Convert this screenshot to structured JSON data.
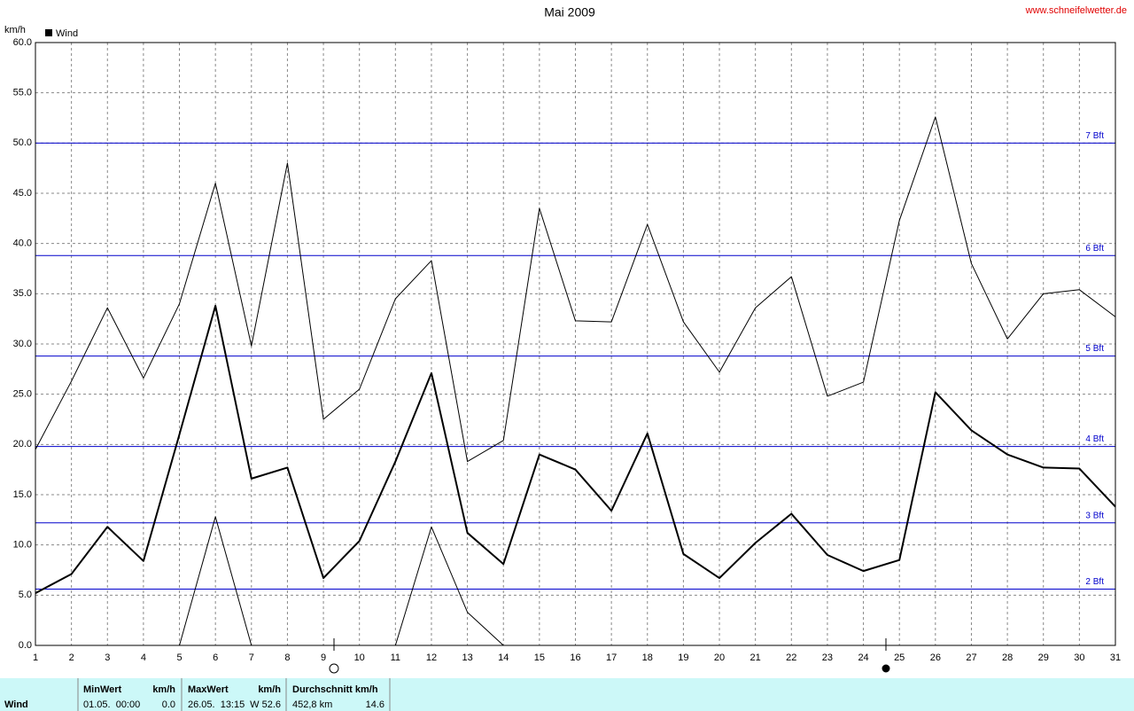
{
  "chart_data": {
    "type": "line",
    "title": "Mai 2009",
    "source": "www.schneifelwetter.de",
    "y_label": "km/h",
    "legend": "Wind",
    "x": [
      1,
      2,
      3,
      4,
      5,
      6,
      7,
      8,
      9,
      10,
      11,
      12,
      13,
      14,
      15,
      16,
      17,
      18,
      19,
      20,
      21,
      22,
      23,
      24,
      25,
      26,
      27,
      28,
      29,
      30,
      31
    ],
    "xlim": [
      1,
      31
    ],
    "xticks": [
      1,
      2,
      3,
      4,
      5,
      6,
      7,
      8,
      9,
      10,
      11,
      12,
      13,
      14,
      15,
      16,
      17,
      18,
      19,
      20,
      21,
      22,
      23,
      24,
      25,
      26,
      27,
      28,
      29,
      30,
      31
    ],
    "ylim": [
      0,
      60
    ],
    "yticks": [
      {
        "value": 0,
        "label": "0.0"
      },
      {
        "value": 5,
        "label": "5.0"
      },
      {
        "value": 10,
        "label": "10.0"
      },
      {
        "value": 15,
        "label": "15.0"
      },
      {
        "value": 20,
        "label": "20.0"
      },
      {
        "value": 25,
        "label": "25.0"
      },
      {
        "value": 30,
        "label": "30.0"
      },
      {
        "value": 35,
        "label": "35.0"
      },
      {
        "value": 40,
        "label": "40.0"
      },
      {
        "value": 45,
        "label": "45.0"
      },
      {
        "value": 50,
        "label": "50.0"
      },
      {
        "value": 55,
        "label": "55.0"
      },
      {
        "value": 60,
        "label": "60.0"
      }
    ],
    "grid": true,
    "series": [
      {
        "color": "#000000",
        "line_width": 1,
        "values": [
          19.5,
          26.3,
          33.6,
          26.6,
          34.0,
          46.0,
          29.8,
          48.0,
          22.5,
          25.5,
          34.5,
          38.3,
          18.3,
          20.4,
          43.5,
          32.3,
          32.2,
          41.9,
          32.2,
          27.2,
          33.6,
          36.7,
          24.8,
          26.2,
          42.3,
          52.6,
          38.0,
          30.5,
          35.0,
          35.4,
          32.7
        ]
      },
      {
        "color": "#000000",
        "line_width": 2,
        "values": [
          5.2,
          7.1,
          11.8,
          8.4,
          21.0,
          33.8,
          16.6,
          17.7,
          6.7,
          10.4,
          18.3,
          27.1,
          11.2,
          8.1,
          19.0,
          17.5,
          13.4,
          21.1,
          9.1,
          6.7,
          10.2,
          13.1,
          9.0,
          7.4,
          8.5,
          25.2,
          21.4,
          19.0,
          17.7,
          17.6,
          13.8
        ]
      },
      {
        "color": "#000000",
        "line_width": 1,
        "values": [
          0,
          0,
          0,
          0,
          0,
          12.8,
          0,
          0,
          0,
          0,
          0,
          11.8,
          3.3,
          0,
          0,
          0,
          0,
          0,
          0,
          0,
          0,
          0,
          0,
          0,
          0,
          0,
          0,
          0,
          0,
          0,
          0
        ]
      }
    ],
    "reference_color": "#0000cc",
    "reference_lines": [
      {
        "value": 5.6,
        "label": "2 Bft"
      },
      {
        "value": 12.2,
        "label": "3 Bft"
      },
      {
        "value": 19.8,
        "label": "4 Bft"
      },
      {
        "value": 28.8,
        "label": "5 Bft"
      },
      {
        "value": 38.8,
        "label": "6 Bft"
      },
      {
        "value": 50.0,
        "label": "7 Bft"
      }
    ],
    "summary": {
      "name": "Wind",
      "min_header": "MinWert",
      "min_unit": "km/h",
      "min_time": "01.05.  00:00",
      "min_value": "0.0",
      "max_header": "MaxWert",
      "max_unit": "km/h",
      "max_time": "26.05.  13:15",
      "max_value": "W 52.6",
      "avg_header": "Durchschnitt km/h",
      "avg_distance": "452,8 km",
      "avg_value": "14.6"
    }
  }
}
